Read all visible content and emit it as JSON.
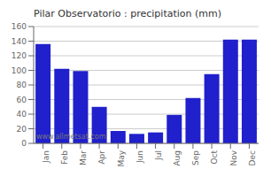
{
  "chart_data": {
    "type": "bar",
    "title": "Pilar Observatorio : precipitation (mm)",
    "categories": [
      "Jan",
      "Feb",
      "Mar",
      "Apr",
      "May",
      "Jun",
      "Jul",
      "Aug",
      "Sep",
      "Oct",
      "Nov",
      "Dec"
    ],
    "values": [
      136,
      102,
      99,
      50,
      17,
      13,
      15,
      39,
      62,
      95,
      142,
      142
    ],
    "color": "#2020cc",
    "ylim": [
      0,
      160
    ],
    "yticks": [
      0,
      20,
      40,
      60,
      80,
      100,
      120,
      140,
      160
    ],
    "grid": true,
    "annotations": [
      "www.allmetsat.com"
    ]
  }
}
